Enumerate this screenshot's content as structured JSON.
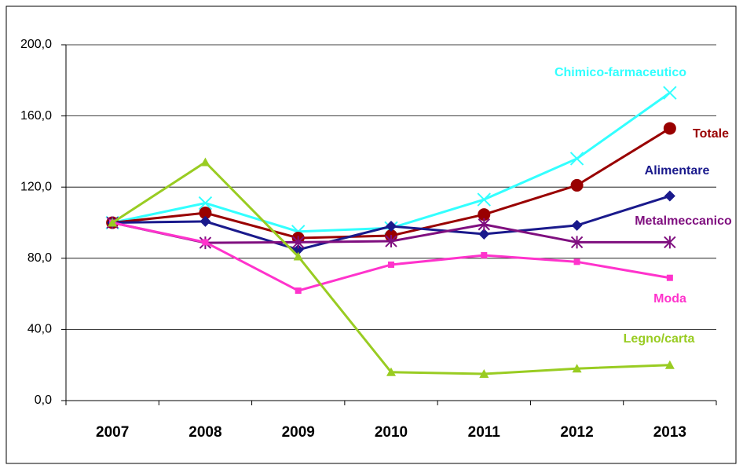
{
  "chart_data": {
    "type": "line",
    "categories": [
      "2007",
      "2008",
      "2009",
      "2010",
      "2011",
      "2012",
      "2013"
    ],
    "series": [
      {
        "name": "Chimico-farmaceutico",
        "color": "#33ffff",
        "values": [
          100,
          111,
          95,
          97,
          113,
          136,
          173
        ]
      },
      {
        "name": "Totale",
        "color": "#990000",
        "values": [
          100,
          105.5,
          91.4,
          92.7,
          104.6,
          121,
          153
        ]
      },
      {
        "name": "Alimentare",
        "color": "#1a1a8c",
        "values": [
          100,
          100.7,
          84.8,
          98,
          93.6,
          98.5,
          115
        ]
      },
      {
        "name": "Metalmeccanico",
        "color": "#7f0f7f",
        "values": [
          100,
          88.7,
          89,
          89.6,
          99,
          89,
          89
        ]
      },
      {
        "name": "Moda",
        "color": "#ff33cc",
        "values": [
          100,
          89,
          61.8,
          76.4,
          81.7,
          78,
          69
        ]
      },
      {
        "name": "Legno/carta",
        "color": "#99cc22",
        "values": [
          100,
          134,
          81,
          16,
          15,
          18,
          20
        ]
      }
    ],
    "ylim": [
      0,
      200
    ],
    "yticks": [
      {
        "value": 0,
        "label": "0,0"
      },
      {
        "value": 40,
        "label": "40,0"
      },
      {
        "value": 80,
        "label": "80,0"
      },
      {
        "value": 120,
        "label": "120,0"
      },
      {
        "value": 160,
        "label": "160,0"
      },
      {
        "value": 200,
        "label": "200,0"
      }
    ],
    "grid": true
  }
}
